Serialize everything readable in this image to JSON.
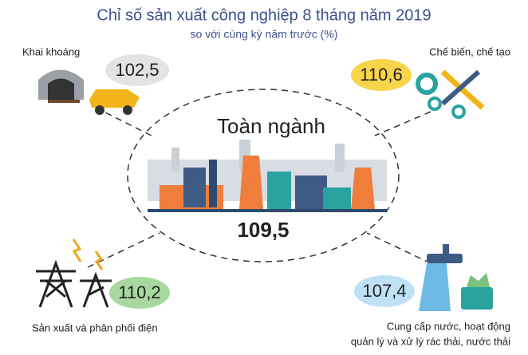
{
  "header": {
    "title": "Chỉ số sản xuất công nghiệp 8 tháng năm 2019",
    "subtitle": "so với cùng kỳ năm trước (%)"
  },
  "center": {
    "label": "Toàn ngành",
    "value": "109,5"
  },
  "sectors": [
    {
      "label": [
        "Khai khoáng"
      ],
      "value": "102,5"
    },
    {
      "label": [
        "Chế biến, chế tạo"
      ],
      "value": "110,6"
    },
    {
      "label": [
        "Sản xuất và phân phối điện"
      ],
      "value": "110,2"
    },
    {
      "label": [
        "Cung cấp nước, hoạt động",
        "quản lý và xử lý rác thải, nước thải"
      ],
      "value": "107,4"
    }
  ]
}
